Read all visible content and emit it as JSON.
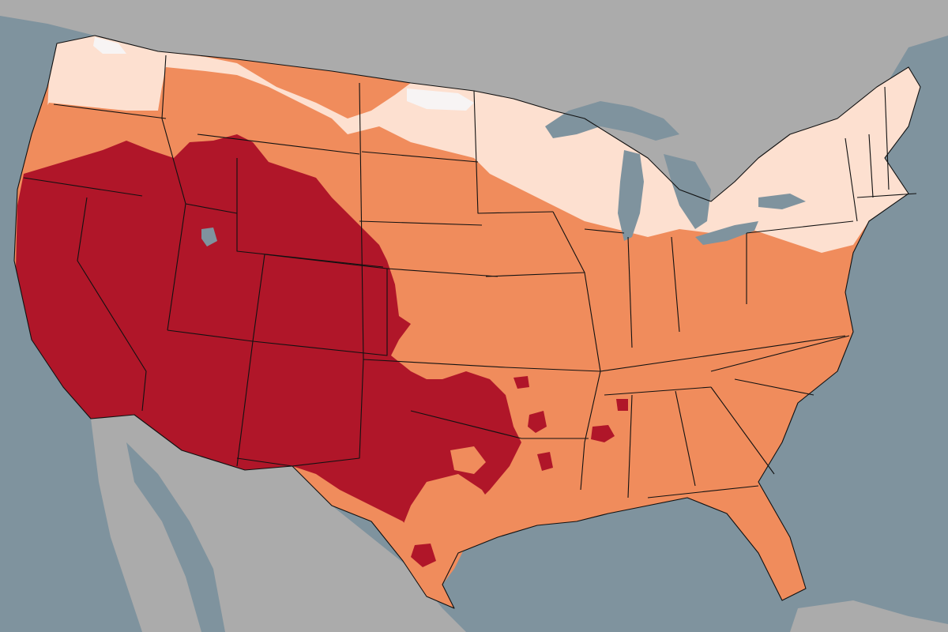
{
  "map": {
    "colors": {
      "ocean": "#7f939e",
      "land_outside": "#ababab",
      "class_lightest": "#f7f4f4",
      "class_light": "#fde0d0",
      "class_medium": "#f08c5c",
      "class_dark": "#b01629",
      "water_bodies": "#7f939e",
      "state_borders": "#111111"
    },
    "region_classes": [
      {
        "name": "lightest",
        "regions": [
          "northern-north-dakota-patches"
        ]
      },
      {
        "name": "light",
        "regions": [
          "pacific-northwest",
          "northern-plains",
          "upper-midwest",
          "northeast"
        ]
      },
      {
        "name": "medium",
        "regions": [
          "central-plains",
          "midwest",
          "southeast",
          "florida"
        ]
      },
      {
        "name": "dark",
        "regions": [
          "west",
          "southwest",
          "texas-oklahoma"
        ]
      }
    ]
  }
}
